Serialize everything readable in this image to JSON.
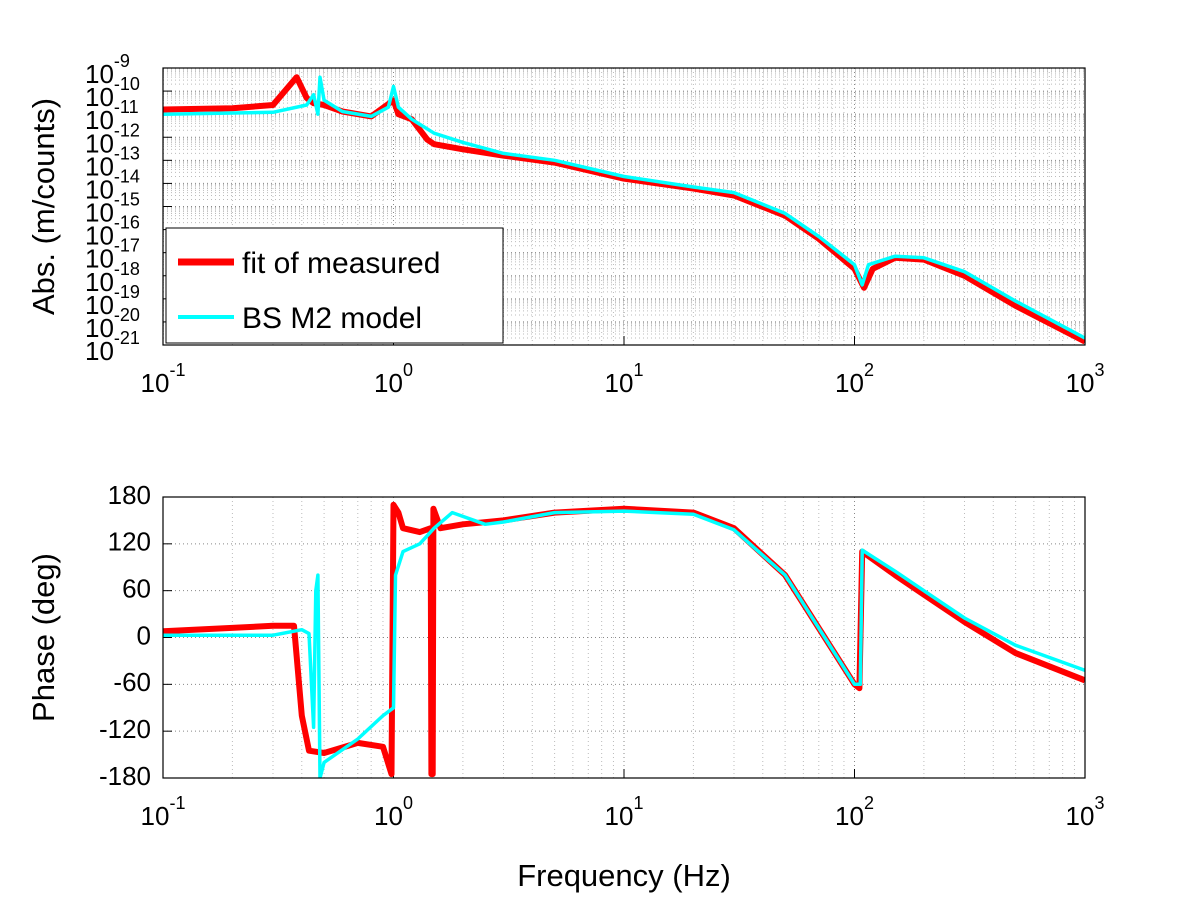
{
  "chart_data": [
    {
      "type": "line",
      "xscale": "log",
      "yscale": "log",
      "grid": true,
      "legend": "lower left",
      "ylabel": "Abs. (m/counts)",
      "xlim": [
        0.1,
        1000
      ],
      "xticks": [
        {
          "value": 0.1,
          "label": "10-1"
        },
        {
          "value": 1,
          "label": "100"
        },
        {
          "value": 10,
          "label": "101"
        },
        {
          "value": 100,
          "label": "102"
        },
        {
          "value": 1000,
          "label": "103"
        }
      ],
      "ylim": [
        1e-21,
        1e-09
      ],
      "yticks": [
        {
          "value": 1e-21,
          "label": "10-21"
        },
        {
          "value": 1e-20,
          "label": "10-20"
        },
        {
          "value": 1e-19,
          "label": "10-19"
        },
        {
          "value": 1e-18,
          "label": "10-18"
        },
        {
          "value": 1e-17,
          "label": "10-17"
        },
        {
          "value": 1e-16,
          "label": "10-16"
        },
        {
          "value": 1e-15,
          "label": "10-15"
        },
        {
          "value": 1e-14,
          "label": "10-14"
        },
        {
          "value": 1e-13,
          "label": "10-13"
        },
        {
          "value": 1e-12,
          "label": "10-12"
        },
        {
          "value": 1e-11,
          "label": "10-11"
        },
        {
          "value": 1e-10,
          "label": "10-10"
        },
        {
          "value": 1e-09,
          "label": "10-9"
        }
      ],
      "series": [
        {
          "name": "fit of measured",
          "color": "#ff0000",
          "x": [
            0.1,
            0.2,
            0.3,
            0.38,
            0.42,
            0.45,
            0.5,
            0.6,
            0.8,
            1.0,
            1.05,
            1.2,
            1.4,
            1.5,
            2,
            3,
            5,
            10,
            20,
            30,
            50,
            70,
            100,
            110,
            120,
            150,
            200,
            300,
            500,
            1000
          ],
          "values": [
            1.6e-11,
            1.8e-11,
            2.5e-11,
            4e-10,
            5e-11,
            3e-11,
            2.5e-11,
            1.3e-11,
            8e-12,
            4e-11,
            1e-11,
            6e-12,
            8e-13,
            5e-13,
            3e-13,
            1.6e-13,
            8e-14,
            1.6e-14,
            6e-15,
            3e-15,
            4e-16,
            4e-17,
            2e-18,
            3e-19,
            2e-18,
            6e-18,
            5e-18,
            1e-18,
            5e-20,
            1.4e-21
          ]
        },
        {
          "name": "BS M2 model",
          "color": "#00ffff",
          "x": [
            0.1,
            0.3,
            0.42,
            0.45,
            0.47,
            0.48,
            0.5,
            0.6,
            0.8,
            0.95,
            1.0,
            1.05,
            1.2,
            1.5,
            2,
            3,
            5,
            10,
            20,
            30,
            50,
            70,
            100,
            108,
            115,
            150,
            200,
            300,
            500,
            1000
          ],
          "values": [
            1e-11,
            1.2e-11,
            2.5e-11,
            7e-11,
            1e-11,
            4e-10,
            4e-11,
            1.3e-11,
            8e-12,
            2e-11,
            1.6e-10,
            2e-11,
            6e-12,
            1.5e-12,
            6e-13,
            2e-13,
            1e-13,
            2e-14,
            7e-15,
            4e-15,
            5e-16,
            5e-17,
            3e-18,
            4e-19,
            3e-18,
            7e-18,
            6e-18,
            1.5e-18,
            8e-20,
            2e-21
          ]
        }
      ]
    },
    {
      "type": "line",
      "xscale": "log",
      "grid": true,
      "ylabel": "Phase (deg)",
      "xlabel": "Frequency (Hz)",
      "xlim": [
        0.1,
        1000
      ],
      "xticks": [
        {
          "value": 0.1,
          "label": "10-1"
        },
        {
          "value": 1,
          "label": "100"
        },
        {
          "value": 10,
          "label": "101"
        },
        {
          "value": 100,
          "label": "102"
        },
        {
          "value": 1000,
          "label": "103"
        }
      ],
      "ylim": [
        -180,
        180
      ],
      "yticks": [
        -180,
        -120,
        -60,
        0,
        60,
        120,
        180
      ],
      "series": [
        {
          "color": "#ff0000",
          "x": [
            0.1,
            0.3,
            0.37,
            0.4,
            0.43,
            0.5,
            0.7,
            0.9,
            0.98,
            1.0,
            1.05,
            1.1,
            1.3,
            1.45,
            1.46,
            1.48,
            1.49,
            1.6,
            2,
            3,
            5,
            10,
            20,
            30,
            50,
            100,
            105,
            108,
            150,
            200,
            300,
            500,
            1000
          ],
          "values": [
            8,
            15,
            15,
            -100,
            -145,
            -148,
            -135,
            -140,
            -175,
            170,
            160,
            140,
            135,
            140,
            -175,
            -175,
            165,
            140,
            145,
            150,
            160,
            165,
            160,
            140,
            80,
            -60,
            -65,
            110,
            80,
            55,
            20,
            -20,
            -55
          ]
        },
        {
          "color": "#00ffff",
          "x": [
            0.1,
            0.3,
            0.4,
            0.43,
            0.45,
            0.46,
            0.47,
            0.48,
            0.5,
            0.7,
            0.9,
            1.0,
            1.02,
            1.1,
            1.3,
            1.5,
            1.8,
            2.5,
            3,
            5,
            10,
            20,
            30,
            50,
            100,
            106,
            108,
            150,
            200,
            300,
            500,
            1000
          ],
          "values": [
            3,
            3,
            10,
            5,
            -115,
            60,
            80,
            -180,
            -160,
            -130,
            -100,
            -90,
            80,
            110,
            120,
            140,
            160,
            145,
            148,
            160,
            162,
            158,
            138,
            80,
            -60,
            -60,
            112,
            85,
            60,
            25,
            -10,
            -42
          ]
        }
      ]
    }
  ]
}
